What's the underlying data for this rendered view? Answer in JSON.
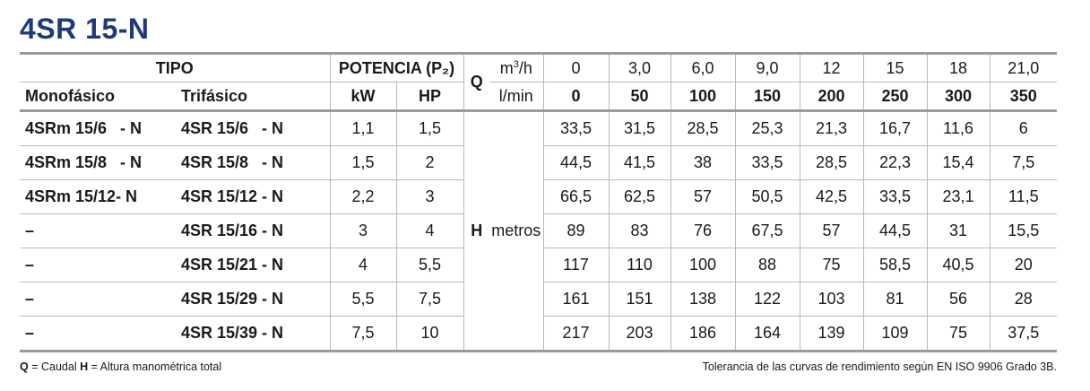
{
  "title": "4SR 15-N",
  "header": {
    "tipo": "TIPO",
    "potencia": "POTENCIA (P₂)",
    "q": "Q",
    "q_unit1": "m³/h",
    "q_unit1_base": "m",
    "q_unit1_sup": "3",
    "q_unit1_rest": "/h",
    "q_unit2": "l/min",
    "monofasico": "Monofásico",
    "trifasico": "Trifásico",
    "kw": "kW",
    "hp": "HP",
    "flow_m3h": [
      "0",
      "3,0",
      "6,0",
      "9,0",
      "12",
      "15",
      "18",
      "21,0"
    ],
    "flow_lmin": [
      "0",
      "50",
      "100",
      "150",
      "200",
      "250",
      "300",
      "350"
    ]
  },
  "h_label": "H",
  "h_unit": "metros",
  "rows": [
    {
      "mono": "4SRm 15/6   - N",
      "tri": "4SR 15/6   - N",
      "kw": "1,1",
      "hp": "1,5",
      "heads": [
        "33,5",
        "31,5",
        "28,5",
        "25,3",
        "21,3",
        "16,7",
        "11,6",
        "6"
      ]
    },
    {
      "mono": "4SRm 15/8   - N",
      "tri": "4SR 15/8   - N",
      "kw": "1,5",
      "hp": "2",
      "heads": [
        "44,5",
        "41,5",
        "38",
        "33,5",
        "28,5",
        "22,3",
        "15,4",
        "7,5"
      ]
    },
    {
      "mono": "4SRm 15/12- N",
      "tri": "4SR 15/12 - N",
      "kw": "2,2",
      "hp": "3",
      "heads": [
        "66,5",
        "62,5",
        "57",
        "50,5",
        "42,5",
        "33,5",
        "23,1",
        "11,5"
      ]
    },
    {
      "mono": "–",
      "tri": "4SR 15/16 - N",
      "kw": "3",
      "hp": "4",
      "heads": [
        "89",
        "83",
        "76",
        "67,5",
        "57",
        "44,5",
        "31",
        "15,5"
      ]
    },
    {
      "mono": "–",
      "tri": "4SR 15/21 - N",
      "kw": "4",
      "hp": "5,5",
      "heads": [
        "117",
        "110",
        "100",
        "88",
        "75",
        "58,5",
        "40,5",
        "20"
      ]
    },
    {
      "mono": "–",
      "tri": "4SR 15/29 - N",
      "kw": "5,5",
      "hp": "7,5",
      "heads": [
        "161",
        "151",
        "138",
        "122",
        "103",
        "81",
        "56",
        "28"
      ]
    },
    {
      "mono": "–",
      "tri": "4SR 15/39 - N",
      "kw": "7,5",
      "hp": "10",
      "heads": [
        "217",
        "203",
        "186",
        "164",
        "139",
        "109",
        "75",
        "37,5"
      ]
    }
  ],
  "footer": {
    "q_key": "Q",
    "q_desc": " = Caudal  ",
    "h_key": "H",
    "h_desc": " = Altura manométrica total",
    "tolerance": "Tolerancia de las curvas de rendimiento según EN ISO 9906 Grado 3B."
  }
}
